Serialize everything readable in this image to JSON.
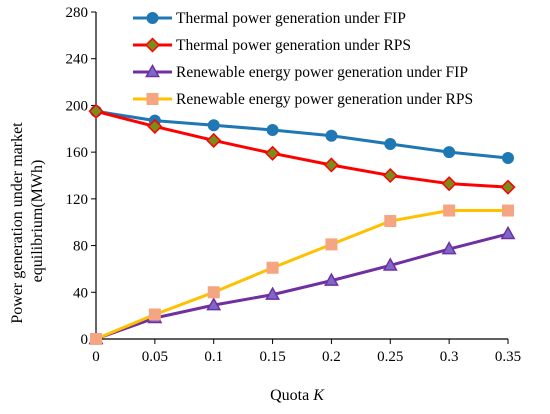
{
  "chart_data": {
    "type": "line",
    "x": [
      0,
      0.05,
      0.1,
      0.15,
      0.2,
      0.25,
      0.3,
      0.35
    ],
    "x_tick_labels": [
      "0",
      "0.05",
      "0.1",
      "0.15",
      "0.2",
      "0.25",
      "0.3",
      "0.35"
    ],
    "xlim": [
      0,
      0.35
    ],
    "ylim": [
      0,
      280
    ],
    "y_ticks": [
      0,
      40,
      80,
      120,
      160,
      200,
      240,
      280
    ],
    "y_tick_labels": [
      "0",
      "40",
      "80",
      "120",
      "160",
      "200",
      "240",
      "280"
    ],
    "xlabel": {
      "prefix": "Quota ",
      "var": "K"
    },
    "ylabel": [
      "Power generation under market",
      "equilibrium(MWh)"
    ],
    "grid": false,
    "legend_position": "top-right",
    "series": [
      {
        "name": "Thermal power generation under FIP",
        "color": "#1f78b4",
        "marker": "circle",
        "values": [
          195,
          187,
          183,
          179,
          174,
          167,
          160,
          155
        ]
      },
      {
        "name": "Thermal power generation under RPS",
        "color": "#ff0000",
        "marker_fill": "#7a8c1a",
        "marker": "diamond",
        "values": [
          195,
          182,
          170,
          159,
          149,
          140,
          133,
          130
        ]
      },
      {
        "name": "Renewable energy power generation under FIP",
        "color": "#7030a0",
        "marker_fill": "#7b68c8",
        "marker": "triangle",
        "values": [
          0,
          18,
          29,
          38,
          50,
          63,
          77,
          90
        ]
      },
      {
        "name": "Renewable energy power generation under RPS",
        "color": "#ffc000",
        "marker_fill": "#f4a582",
        "marker": "square",
        "values": [
          0,
          21,
          40,
          61,
          81,
          101,
          110,
          110
        ]
      }
    ]
  }
}
